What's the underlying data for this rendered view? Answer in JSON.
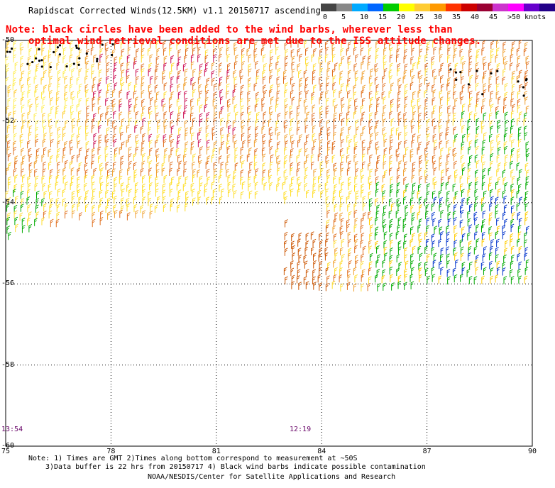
{
  "title": "Rapidscat Corrected Winds(12.5KM) v1.1 20150717 ascending",
  "note": {
    "line1": "Note: black circles have been added to the wind barbs, wherever less than",
    "line2": "optimal wind retrieval conditions are met due to the ISS attitude changes."
  },
  "colorbar": {
    "labels": [
      "0",
      "5",
      "10",
      "15",
      "20",
      "25",
      "30",
      "35",
      "40",
      "45",
      ">50 knots"
    ],
    "colors": [
      "#444444",
      "#888888",
      "#00aaff",
      "#0066ff",
      "#00cc00",
      "#ffff00",
      "#ffcc33",
      "#ff9900",
      "#ff3300",
      "#cc0000",
      "#990033",
      "#cc33cc",
      "#ff00ff",
      "#6600cc",
      "#220088"
    ]
  },
  "axes": {
    "lon_labels": [
      "75",
      "78",
      "81",
      "84",
      "87",
      "90"
    ],
    "lat_labels": [
      "-50",
      "-52",
      "-54",
      "-56",
      "-58",
      "-60"
    ]
  },
  "times": {
    "left": "13:54",
    "right": "12:19"
  },
  "footer": {
    "line1": "Note: 1) Times are GMT 2)Times along bottom correspond to measurement at ~50S",
    "line2": "3)Data buffer is 22 hrs from 20150717 4) Black wind barbs indicate possible contamination",
    "line3": "NOAA/NESDIS/Center for Satellite Applications and Research"
  }
}
